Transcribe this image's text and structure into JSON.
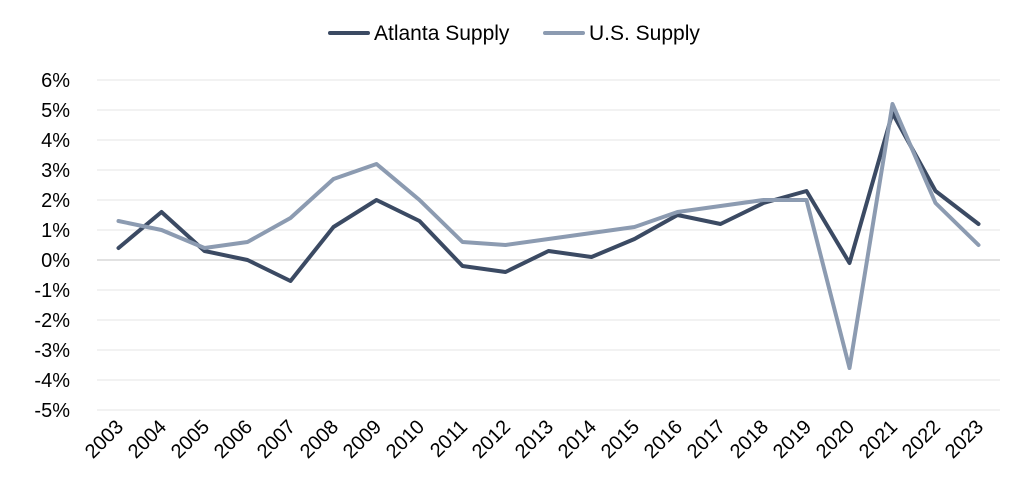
{
  "chart_data": {
    "type": "line",
    "title": "",
    "xlabel": "",
    "ylabel": "",
    "categories": [
      "2003",
      "2004",
      "2005",
      "2006",
      "2007",
      "2008",
      "2009",
      "2010",
      "2011",
      "2012",
      "2013",
      "2014",
      "2015",
      "2016",
      "2017",
      "2018",
      "2019",
      "2020",
      "2021",
      "2022",
      "2023"
    ],
    "series": [
      {
        "name": "Atlanta Supply",
        "color": "#3b4a63",
        "values": [
          0.4,
          1.6,
          0.3,
          0.0,
          -0.7,
          1.1,
          2.0,
          1.3,
          -0.2,
          -0.4,
          0.3,
          0.1,
          0.7,
          1.5,
          1.2,
          1.9,
          2.3,
          -0.1,
          4.9,
          2.3,
          1.2
        ]
      },
      {
        "name": "U.S. Supply",
        "color": "#8c9bb1",
        "values": [
          1.3,
          1.0,
          0.4,
          0.6,
          1.4,
          2.7,
          3.2,
          2.0,
          0.6,
          0.5,
          0.7,
          0.9,
          1.1,
          1.6,
          1.8,
          2.0,
          2.0,
          -3.6,
          5.2,
          1.9,
          0.5
        ]
      }
    ],
    "ylim": [
      -5,
      6
    ],
    "yticks": [
      6,
      5,
      4,
      3,
      2,
      1,
      0,
      -1,
      -2,
      -3,
      -4,
      -5
    ],
    "ytick_labels": [
      "6%",
      "5%",
      "4%",
      "3%",
      "2%",
      "1%",
      "0%",
      "-1%",
      "-2%",
      "-3%",
      "-4%",
      "-5%"
    ],
    "grid": true,
    "legend_position": "top-center"
  }
}
